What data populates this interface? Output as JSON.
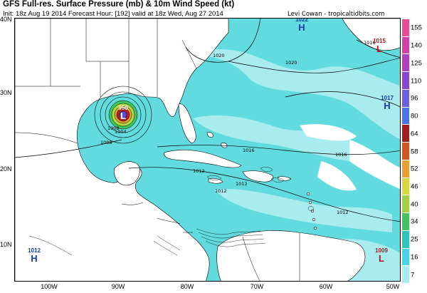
{
  "header": {
    "title": "GFS Full-res. Surface Pressure (mb) & 10m Wind Speed (kt)",
    "subtitle": "Init: 18z Aug 19 2014 Forecast Hour: [192] valid at 18z Wed, Aug 27 2014",
    "credit": "Levi Cowan - tropicaltidbits.com"
  },
  "map": {
    "lat_labels": [
      "40N",
      "30N",
      "20N",
      "10N"
    ],
    "lon_labels": [
      "100W",
      "90W",
      "80W",
      "70W",
      "60W",
      "50W"
    ],
    "land_color": "#ffffff",
    "wind_color": "#5ad9dc"
  },
  "pressure_centers": [
    {
      "type": "H",
      "value": "1022"
    },
    {
      "type": "L",
      "value": "1015"
    },
    {
      "type": "H",
      "value": "1017"
    },
    {
      "type": "H",
      "value": "1012"
    },
    {
      "type": "L",
      "value": "1009"
    },
    {
      "type": "L",
      "value": "950"
    }
  ],
  "isobar_labels": [
    "1020",
    "1020",
    "1016",
    "1016",
    "1012",
    "1012",
    "1012",
    "1008",
    "1008",
    "1004",
    "1016",
    "1012"
  ],
  "colorbar": {
    "labels": [
      "155",
      "140",
      "125",
      "110",
      "96",
      "80",
      "64",
      "58",
      "52",
      "46",
      "40",
      "34",
      "25",
      "16",
      "7"
    ],
    "colors": [
      "#e84a96",
      "#d43fa8",
      "#b03fc0",
      "#8a48d2",
      "#6a5fe0",
      "#4876e8",
      "#a02020",
      "#d05820",
      "#e8a030",
      "#d8d840",
      "#a0d040",
      "#44c460",
      "#2ec4bc",
      "#48d6e6",
      "#a8ecf0"
    ]
  }
}
